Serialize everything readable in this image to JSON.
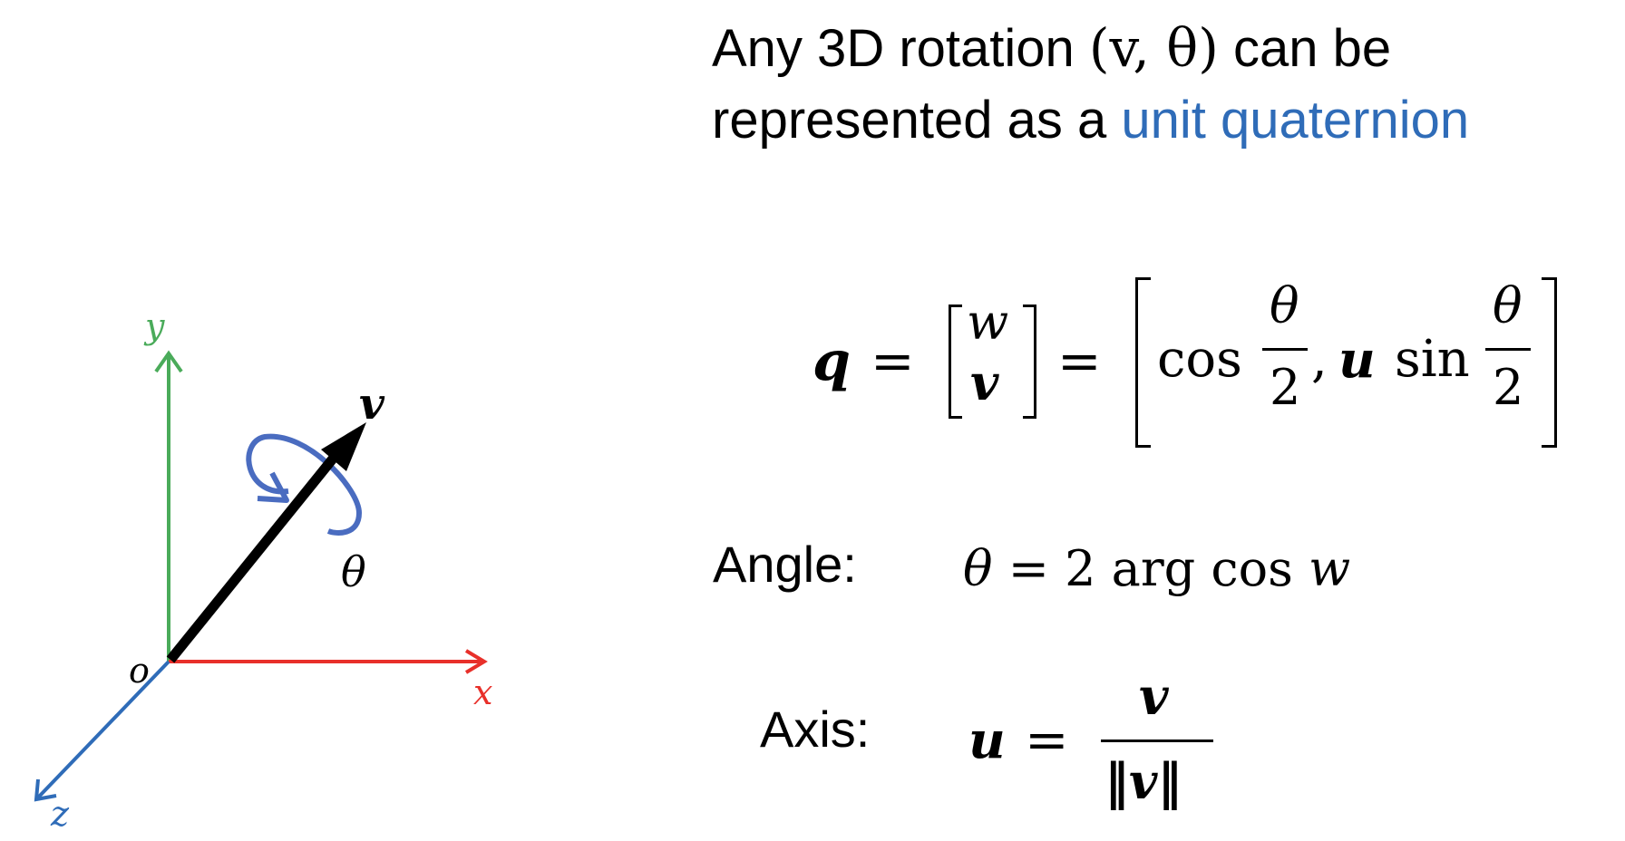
{
  "title": {
    "line1_prefix": "Any 3D rotation ",
    "line1_math": "(v, θ)",
    "line1_suffix": " can be",
    "line2_prefix": "represented as a ",
    "line2_highlight": "unit quaternion"
  },
  "equation_q": {
    "lhs": "q",
    "eq1": "=",
    "vec_top": "w",
    "vec_bottom": "v",
    "eq2": "=",
    "cos": "cos",
    "theta1": "θ",
    "two1": "2",
    "comma": ",",
    "u": "u",
    "sin": "sin",
    "theta2": "θ",
    "two2": "2"
  },
  "angle": {
    "label": "Angle:",
    "formula": "θ = 2 arg cos w"
  },
  "axis_eq": {
    "label": "Axis:",
    "lhs": "u",
    "eq": "=",
    "numerator": "v",
    "denominator": "‖v‖"
  },
  "diagram": {
    "x_label": "x",
    "y_label": "y",
    "z_label": "z",
    "origin_label": "o",
    "vector_label": "v",
    "angle_label": "θ",
    "colors": {
      "x_axis": "#e8302a",
      "y_axis": "#4aab5a",
      "z_axis": "#2f6cb8",
      "vector": "#000000",
      "rotation": "#4a6cc0"
    }
  }
}
